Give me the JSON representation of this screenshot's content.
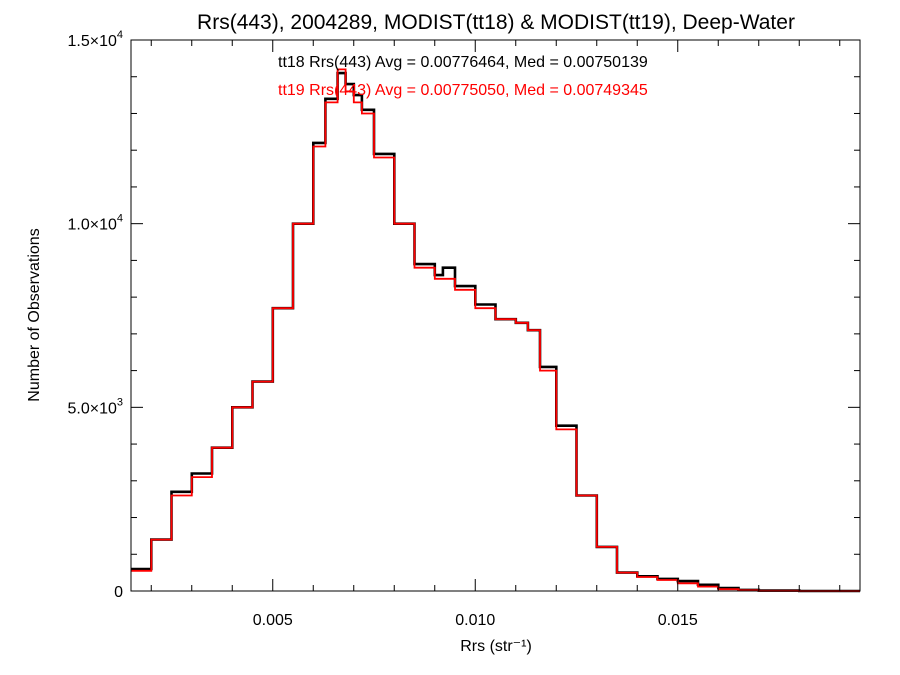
{
  "chart_data": {
    "type": "line",
    "title": "Rrs(443), 2004289, MODIST(tt18) & MODIST(tt19), Deep-Water",
    "xlabel": "Rrs (str⁻¹)",
    "ylabel": "Number of Observations",
    "xlim": [
      0.0015,
      0.0195
    ],
    "ylim": [
      0,
      15000
    ],
    "x_ticks": [
      {
        "value": 0.005,
        "label": "0.005"
      },
      {
        "value": 0.01,
        "label": "0.010"
      },
      {
        "value": 0.015,
        "label": "0.015"
      }
    ],
    "y_ticks": [
      {
        "value": 0,
        "mantissa": "0",
        "exponent": ""
      },
      {
        "value": 5000,
        "mantissa": "5.0×10",
        "exponent": "3"
      },
      {
        "value": 10000,
        "mantissa": "1.0×10",
        "exponent": "4"
      },
      {
        "value": 15000,
        "mantissa": "1.5×10",
        "exponent": "4"
      }
    ],
    "annotations": [
      {
        "text": "tt18 Rrs(443) Avg = 0.00776464, Med = 0.00750139",
        "color": "#000000"
      },
      {
        "text": "tt19 Rrs(443) Avg = 0.00775050, Med = 0.00749345",
        "color": "#ff0000"
      }
    ],
    "series": [
      {
        "color": "#000000",
        "x": [
          0.0015,
          0.002,
          0.0025,
          0.003,
          0.0035,
          0.004,
          0.0045,
          0.005,
          0.0055,
          0.006,
          0.0063,
          0.0066,
          0.0068,
          0.007,
          0.0072,
          0.0075,
          0.008,
          0.0085,
          0.009,
          0.0092,
          0.0095,
          0.01,
          0.0105,
          0.011,
          0.0113,
          0.0116,
          0.012,
          0.0125,
          0.013,
          0.0135,
          0.014,
          0.0145,
          0.015,
          0.0155,
          0.016,
          0.0165,
          0.017,
          0.018,
          0.0195
        ],
        "y": [
          600,
          1400,
          2700,
          3200,
          3900,
          5000,
          5700,
          7700,
          10000,
          12200,
          13400,
          14100,
          13800,
          13500,
          13100,
          11900,
          10000,
          8900,
          8600,
          8800,
          8300,
          7800,
          7400,
          7300,
          7100,
          6100,
          4500,
          2600,
          1200,
          500,
          400,
          330,
          270,
          170,
          80,
          30,
          10,
          0,
          0
        ]
      },
      {
        "color": "#ff0000",
        "x": [
          0.0015,
          0.002,
          0.0025,
          0.003,
          0.0035,
          0.004,
          0.0045,
          0.005,
          0.0055,
          0.006,
          0.0063,
          0.0066,
          0.0068,
          0.007,
          0.0072,
          0.0075,
          0.008,
          0.0085,
          0.009,
          0.0092,
          0.0095,
          0.01,
          0.0105,
          0.011,
          0.0113,
          0.0116,
          0.012,
          0.0125,
          0.013,
          0.0135,
          0.014,
          0.0145,
          0.015,
          0.0155,
          0.016,
          0.0165,
          0.017,
          0.018,
          0.0195
        ],
        "y": [
          550,
          1400,
          2600,
          3100,
          3900,
          5000,
          5700,
          7700,
          10000,
          12100,
          13300,
          14200,
          13600,
          13300,
          13000,
          11800,
          10000,
          8800,
          8500,
          8500,
          8200,
          7700,
          7400,
          7300,
          7100,
          6000,
          4400,
          2600,
          1200,
          500,
          380,
          300,
          210,
          120,
          50,
          20,
          5,
          0,
          0
        ]
      }
    ]
  }
}
